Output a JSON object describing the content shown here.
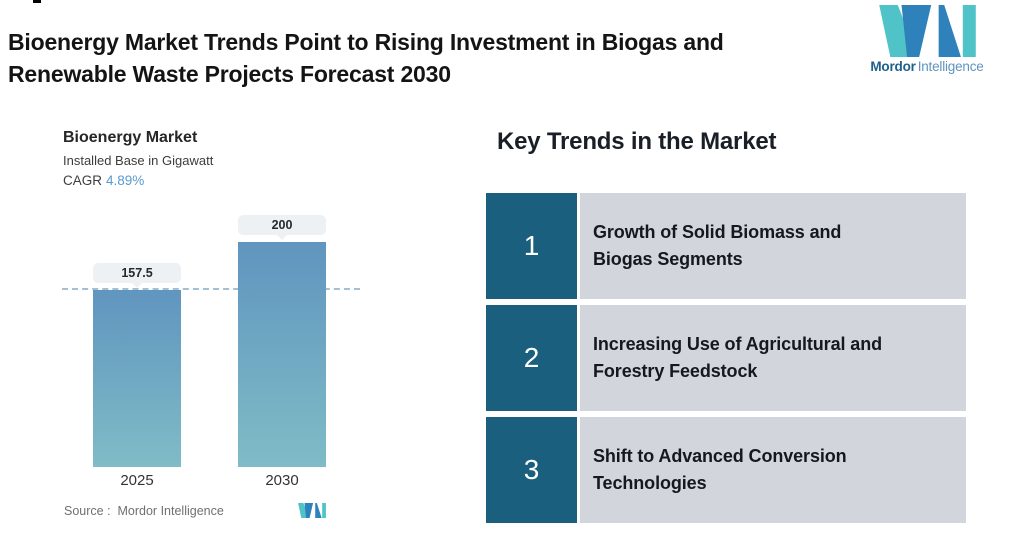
{
  "header": {
    "title": "Bioenergy Market Trends Point to Rising Investment in Biogas and\nRenewable Waste Projects Forecast 2030"
  },
  "logo": {
    "brand_bold": "Mordor",
    "brand_light": "Intelligence",
    "teal": "#4fc3c8",
    "blue": "#2e81ba"
  },
  "chart": {
    "title": "Bioenergy Market",
    "subtitle": "Installed Base in Gigawatt",
    "cagr_label": "CAGR",
    "cagr_value": "4.89%",
    "cagr_value_color": "#589ad1",
    "source_label": "Source :  Mordor Intelligence",
    "pill_bg": "#edf1f3",
    "dashed_line_color": "#a3bfd3"
  },
  "chart_data": {
    "type": "bar",
    "title": "Bioenergy Market",
    "subtitle": "Installed Base in Gigawatt",
    "cagr": "4.89%",
    "unit": "Gigawatt",
    "categories": [
      "2025",
      "2030"
    ],
    "values": [
      157.5,
      200
    ],
    "ylim": [
      0,
      200
    ],
    "reference_line": 157.5,
    "grid": false,
    "legend": false,
    "bar_gradient": [
      "#6095bf",
      "#7fbcc6"
    ]
  },
  "trends": {
    "heading": "Key Trends in the Market",
    "number_bg": "#1a5f7e",
    "item_bg": "#d2d6dc",
    "items": [
      {
        "number": "1",
        "label": "Growth of Solid Biomass and\nBiogas Segments"
      },
      {
        "number": "2",
        "label": "Increasing Use of Agricultural and\nForestry Feedstock"
      },
      {
        "number": "3",
        "label": "Shift to Advanced Conversion\nTechnologies"
      }
    ]
  }
}
